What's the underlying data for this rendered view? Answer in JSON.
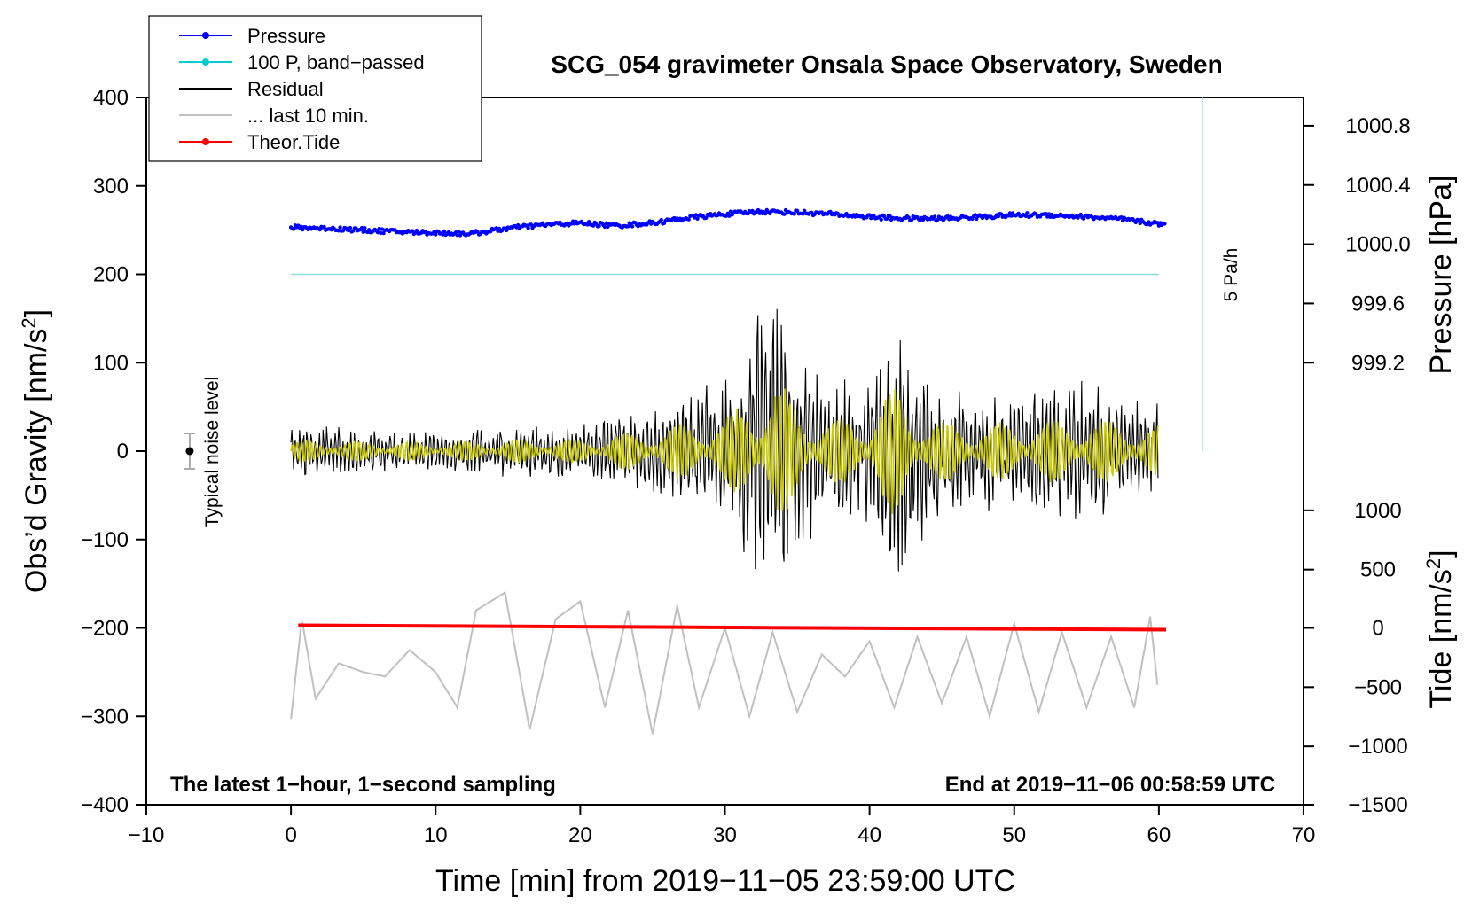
{
  "chart_data": {
    "type": "line",
    "title": "SCG_054 gravimeter Onsala Space Observatory, Sweden",
    "xlabel": "Time [min] from 2019−11−05 23:59:00 UTC",
    "ylabel_left": "Obs’d Gravity [nm/s",
    "ylabel_left_sup": "2",
    "ylabel_left_end": "]",
    "ylabel_right_pressure": "Pressure [hPa]",
    "ylabel_right_tide": "Tide [nm/s",
    "ylabel_right_tide_sup": "2",
    "ylabel_right_tide_end": "]",
    "xlim": [
      -10,
      70
    ],
    "ylim": [
      -400,
      400
    ],
    "x_ticks": [
      -10,
      0,
      10,
      20,
      30,
      40,
      50,
      60,
      70
    ],
    "x_tick_labels": [
      "−10",
      "0",
      "10",
      "20",
      "30",
      "40",
      "50",
      "60",
      "70"
    ],
    "y_ticks": [
      -400,
      -300,
      -200,
      -100,
      0,
      100,
      200,
      300,
      400
    ],
    "y_tick_labels": [
      "−400",
      "−300",
      "−200",
      "−100",
      "0",
      "100",
      "200",
      "300",
      "400"
    ],
    "pressure_axis": {
      "ticks": [
        999.2,
        999.6,
        1000.0,
        1000.4,
        1000.8
      ],
      "tick_labels": [
        "999.2",
        "999.6",
        "1000.0",
        "1000.4",
        "1000.8"
      ],
      "gravity_equiv": [
        100,
        167,
        234,
        301,
        368
      ]
    },
    "tide_axis": {
      "ticks": [
        -1500,
        -1000,
        -500,
        0,
        500,
        1000
      ],
      "tick_labels": [
        "−1500",
        "−1000",
        "−500",
        "0",
        "500",
        "1000"
      ],
      "gravity_equiv": [
        -400,
        -334,
        -267,
        -200,
        -134,
        -67
      ]
    },
    "legend": {
      "placement": "top-left",
      "entries": [
        {
          "label": "Pressure",
          "color": "#0000ff",
          "marker": true
        },
        {
          "label": "100 P, band−passed",
          "color": "#00cccc",
          "marker": true
        },
        {
          "label": "Residual",
          "color": "#000000",
          "marker": false
        },
        {
          "label": "... last 10 min.",
          "color": "#c0c0c0",
          "marker": false
        },
        {
          "label": "Theor.Tide",
          "color": "#ff0000",
          "marker": true
        }
      ]
    },
    "annotations": {
      "bottom_left": "The latest 1−hour, 1−second sampling",
      "bottom_right": "End at 2019−11−06 00:58:59 UTC",
      "noise_label": "Typical noise level",
      "rate_label": "5 Pa/h"
    },
    "noise_bar": {
      "x": -7,
      "center": 0,
      "low": -20,
      "high": 20
    },
    "rate_bar": {
      "x": 63,
      "y_start": 0,
      "y_end": 400
    },
    "series": [
      {
        "name": "Pressure",
        "color": "#0000ff",
        "x": [
          0,
          2.5,
          5,
          7.5,
          10,
          12.5,
          15,
          17.5,
          20,
          22.5,
          25,
          27.5,
          30,
          32.5,
          35,
          37.5,
          40,
          42.5,
          45,
          47.5,
          50,
          52.5,
          55,
          57.5,
          60.5
        ],
        "y": [
          253,
          252,
          250,
          248,
          247,
          246,
          252,
          256,
          258,
          255,
          258,
          264,
          268,
          271,
          270,
          268,
          265,
          263,
          263,
          265,
          267,
          267,
          265,
          262,
          256
        ]
      },
      {
        "name": "100 P, band-passed",
        "color": "#00cccc",
        "x": [
          0,
          60
        ],
        "y": [
          200,
          200
        ]
      },
      {
        "name": "Residual",
        "color": "#000000",
        "x": [
          0,
          2.5,
          5,
          7.5,
          10,
          12.5,
          15,
          17.5,
          20,
          22.5,
          25,
          27.5,
          30,
          32.5,
          33.5,
          35,
          37.5,
          40,
          41,
          42,
          42.5,
          45,
          47.5,
          50,
          52.5,
          55,
          57.5,
          60
        ],
        "y": [
          25,
          30,
          25,
          25,
          22,
          25,
          30,
          30,
          30,
          45,
          55,
          75,
          85,
          170,
          185,
          120,
          80,
          100,
          150,
          165,
          125,
          75,
          70,
          75,
          80,
          85,
          75,
          65
        ]
      },
      {
        "name": "... last 10 min.",
        "color": "#c0c0c0",
        "x": [
          0,
          0.75,
          1.7,
          3.3,
          5,
          6.5,
          8.2,
          10,
          11.5,
          12.8,
          14.8,
          16.5,
          18.3,
          20,
          21.7,
          23.3,
          25,
          26.7,
          28.2,
          30,
          31.7,
          33.3,
          35,
          36.7,
          38.3,
          40,
          41.7,
          43.3,
          45,
          46.7,
          48.3,
          50,
          51.7,
          53.3,
          55,
          56.7,
          58.3,
          59.4,
          60
        ],
        "y": [
          -303,
          -190,
          -280,
          -240,
          -250,
          -255,
          -225,
          -250,
          -290,
          -180,
          -160,
          -315,
          -190,
          -170,
          -290,
          -180,
          -320,
          -175,
          -290,
          -200,
          -300,
          -205,
          -295,
          -230,
          -255,
          -215,
          -290,
          -210,
          -285,
          -210,
          -300,
          -195,
          -295,
          -205,
          -290,
          -210,
          -290,
          -187,
          -280
        ]
      },
      {
        "name": "Theor.Tide",
        "color": "#ff0000",
        "x": [
          0.5,
          60.5
        ],
        "y": [
          -197,
          -202
        ]
      }
    ]
  }
}
